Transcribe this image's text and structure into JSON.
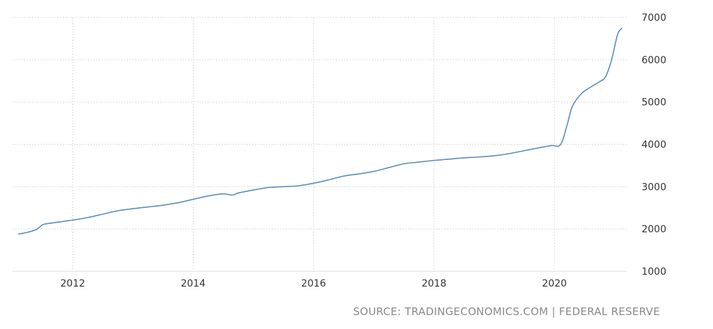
{
  "source": "SOURCE: TRADINGECONOMICS.COM | FEDERAL RESERVE",
  "colors": {
    "series": "#5b8dbb",
    "grid": "#dcdcdc",
    "tick_text": "#333333",
    "source_text": "#8a8a8a"
  },
  "chart_data": {
    "type": "line",
    "title": "",
    "xlabel": "",
    "ylabel": "",
    "xlim": [
      2011.0,
      2021.2
    ],
    "ylim": [
      1000,
      7000
    ],
    "x_ticks": [
      2012,
      2014,
      2016,
      2018,
      2020
    ],
    "y_ticks": [
      1000,
      2000,
      3000,
      4000,
      5000,
      6000,
      7000
    ],
    "y_axis_side": "right",
    "grid": true,
    "legend": "none",
    "series": [
      {
        "x": [
          2011.1,
          2011.25,
          2011.4,
          2011.5,
          2011.6,
          2011.75,
          2011.9,
          2012.0,
          2012.25,
          2012.5,
          2012.75,
          2013.0,
          2013.25,
          2013.5,
          2013.75,
          2014.0,
          2014.25,
          2014.5,
          2014.65,
          2014.75,
          2015.0,
          2015.25,
          2015.5,
          2015.75,
          2016.0,
          2016.25,
          2016.5,
          2016.75,
          2017.0,
          2017.25,
          2017.5,
          2017.75,
          2018.0,
          2018.25,
          2018.5,
          2018.75,
          2019.0,
          2019.25,
          2019.5,
          2019.75,
          2019.95,
          2020.1,
          2020.2,
          2020.3,
          2020.45,
          2020.6,
          2020.75,
          2020.85,
          2020.95,
          2021.05,
          2021.12
        ],
        "values": [
          1880,
          1920,
          1990,
          2100,
          2130,
          2160,
          2190,
          2210,
          2270,
          2350,
          2430,
          2480,
          2520,
          2560,
          2620,
          2700,
          2780,
          2830,
          2800,
          2850,
          2920,
          2980,
          3000,
          3020,
          3080,
          3160,
          3250,
          3300,
          3360,
          3450,
          3540,
          3580,
          3620,
          3650,
          3680,
          3700,
          3730,
          3780,
          3850,
          3920,
          3970,
          3990,
          4400,
          4900,
          5200,
          5350,
          5480,
          5600,
          6000,
          6600,
          6740
        ]
      }
    ]
  }
}
